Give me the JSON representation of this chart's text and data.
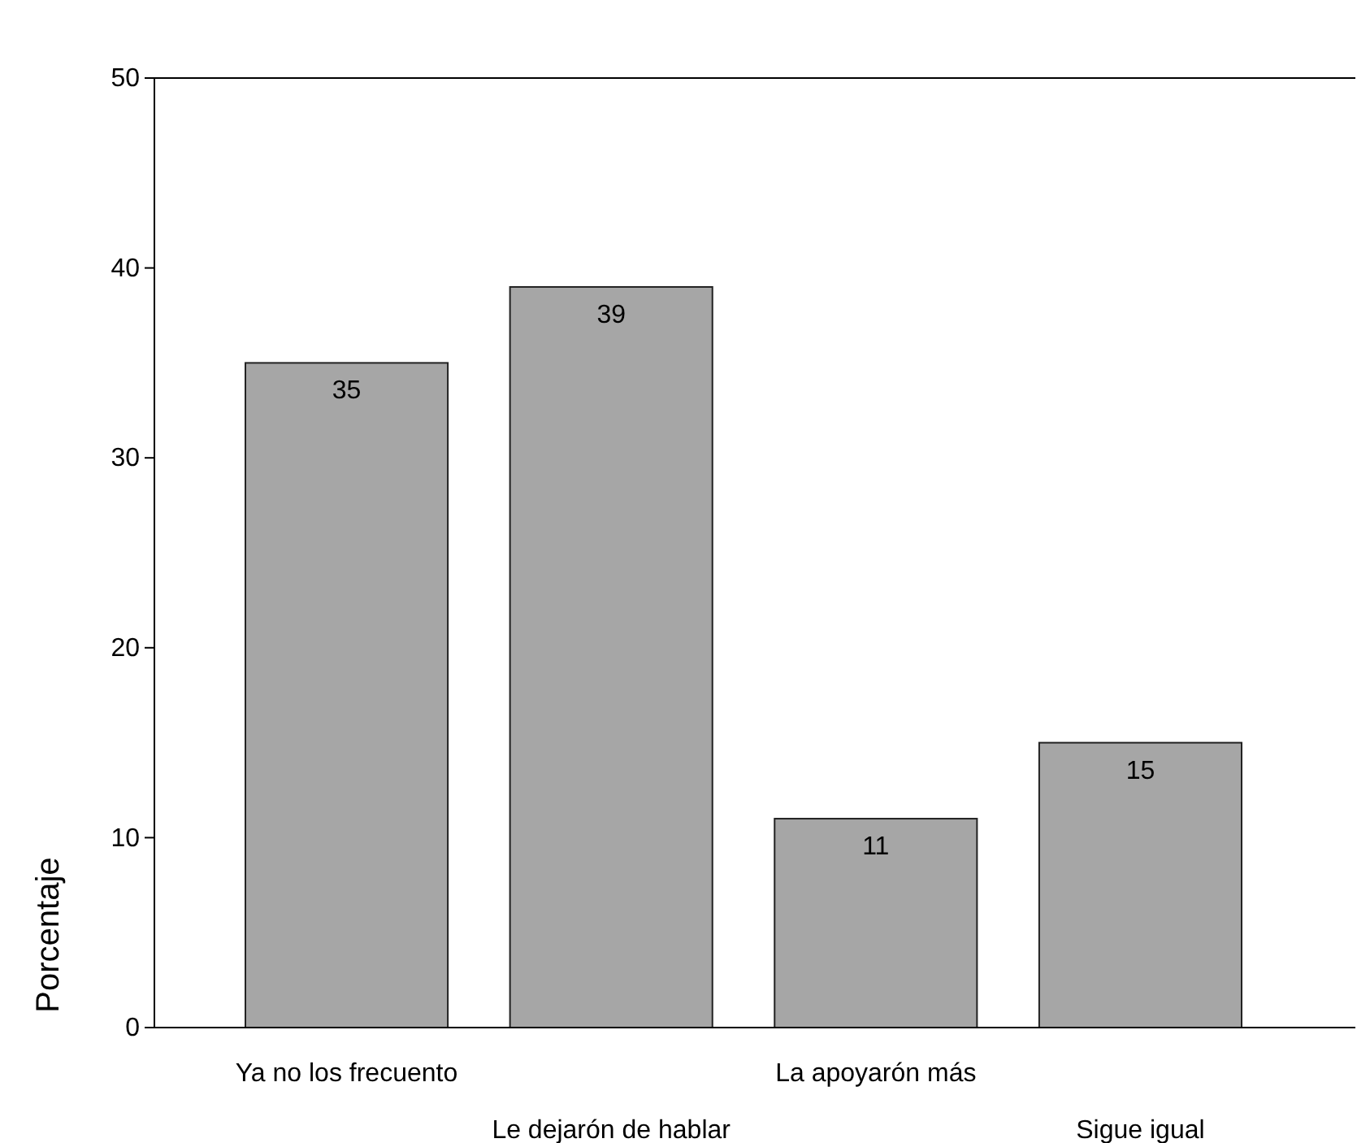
{
  "chart_data": {
    "type": "bar",
    "ylabel": "Porcentaje",
    "categories": [
      "Ya no los frecuento",
      "Le dejarón de hablar",
      "La apoyarón más",
      "Sigue igual"
    ],
    "values": [
      35,
      39,
      11,
      15
    ],
    "color": "#a6a6a6",
    "ylim": [
      0,
      50
    ],
    "yticks": [
      0,
      10,
      20,
      30,
      40,
      50
    ],
    "grid": false,
    "data_labels": true
  }
}
